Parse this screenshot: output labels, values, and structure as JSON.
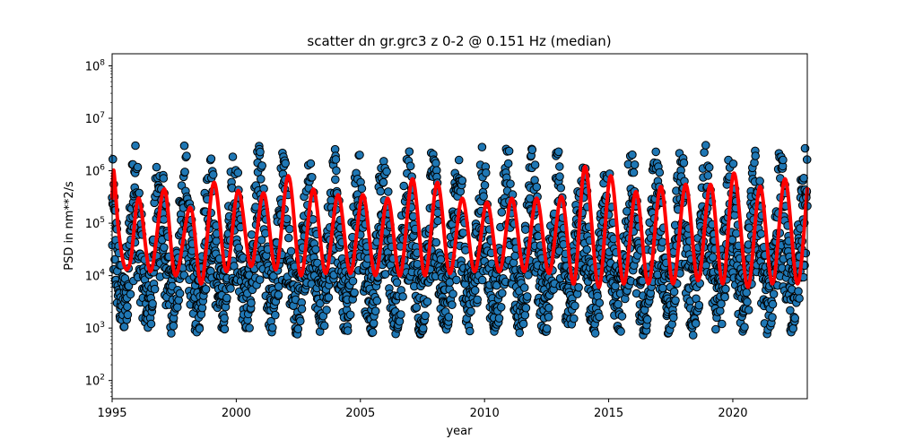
{
  "chart_data": {
    "type": "scatter",
    "title": "scatter dn gr.grc3 z 0-2 @ 0.151 Hz (median)",
    "xlabel": "year",
    "ylabel": "PSD in nm**2/s",
    "xlim": [
      1995,
      2023
    ],
    "ylim": [
      45,
      170000000
    ],
    "yscale": "log",
    "grid": false,
    "x_ticks": [
      1995,
      2000,
      2005,
      2010,
      2015,
      2020
    ],
    "x_tick_labels": [
      "1995",
      "2000",
      "2005",
      "2010",
      "2015",
      "2020"
    ],
    "y_ticks": [
      100,
      1000,
      10000,
      100000,
      1000000,
      10000000,
      100000000
    ],
    "y_tick_labels": [
      {
        "base": "10",
        "exp": "2"
      },
      {
        "base": "10",
        "exp": "3"
      },
      {
        "base": "10",
        "exp": "4"
      },
      {
        "base": "10",
        "exp": "5"
      },
      {
        "base": "10",
        "exp": "6"
      },
      {
        "base": "10",
        "exp": "7"
      },
      {
        "base": "10",
        "exp": "8"
      }
    ],
    "colors": {
      "scatter_fill": "#1f77b4",
      "scatter_edge": "#000000",
      "median_line": "#ff0000"
    },
    "series": [
      {
        "kind": "scatter",
        "x_start": 1995.0,
        "x_end": 2023.0,
        "sample_step_years": 0.01,
        "seasonal_peak_phase": 0.08,
        "log10_center_range": [
          3.5,
          5.2
        ],
        "log10_spread": 1.3
      },
      {
        "kind": "line",
        "x": [
          1995.0,
          1995.07,
          1995.25,
          1995.5,
          1995.75,
          1996.08,
          1996.55,
          1997.1,
          1997.55,
          1998.15,
          1998.6,
          1999.1,
          1999.6,
          2000.08,
          2000.6,
          2001.1,
          2001.6,
          2002.1,
          2002.6,
          2003.1,
          2003.6,
          2004.1,
          2004.6,
          2005.1,
          2005.6,
          2006.1,
          2006.6,
          2007.1,
          2007.6,
          2008.1,
          2008.6,
          2009.1,
          2009.6,
          2010.1,
          2010.6,
          2011.1,
          2011.6,
          2012.1,
          2012.6,
          2013.1,
          2013.6,
          2014.05,
          2014.6,
          2015.08,
          2015.6,
          2016.1,
          2016.6,
          2017.1,
          2017.6,
          2018.1,
          2018.6,
          2019.1,
          2019.6,
          2020.05,
          2020.6,
          2021.1,
          2021.6,
          2022.1,
          2022.6,
          2023.0
        ],
        "y": [
          300000,
          1000000,
          80000,
          15000,
          20000,
          300000,
          12000,
          450000,
          10000,
          200000,
          7000,
          600000,
          12000,
          420000,
          15000,
          380000,
          13000,
          800000,
          10000,
          450000,
          11000,
          350000,
          11000,
          350000,
          10000,
          300000,
          10000,
          700000,
          10000,
          600000,
          11000,
          300000,
          12000,
          250000,
          12000,
          300000,
          12000,
          300000,
          11000,
          320000,
          7000,
          1200000,
          6000,
          800000,
          7000,
          400000,
          7000,
          500000,
          7000,
          550000,
          8000,
          550000,
          7000,
          900000,
          6000,
          500000,
          7000,
          700000,
          7000,
          450000
        ]
      }
    ]
  }
}
